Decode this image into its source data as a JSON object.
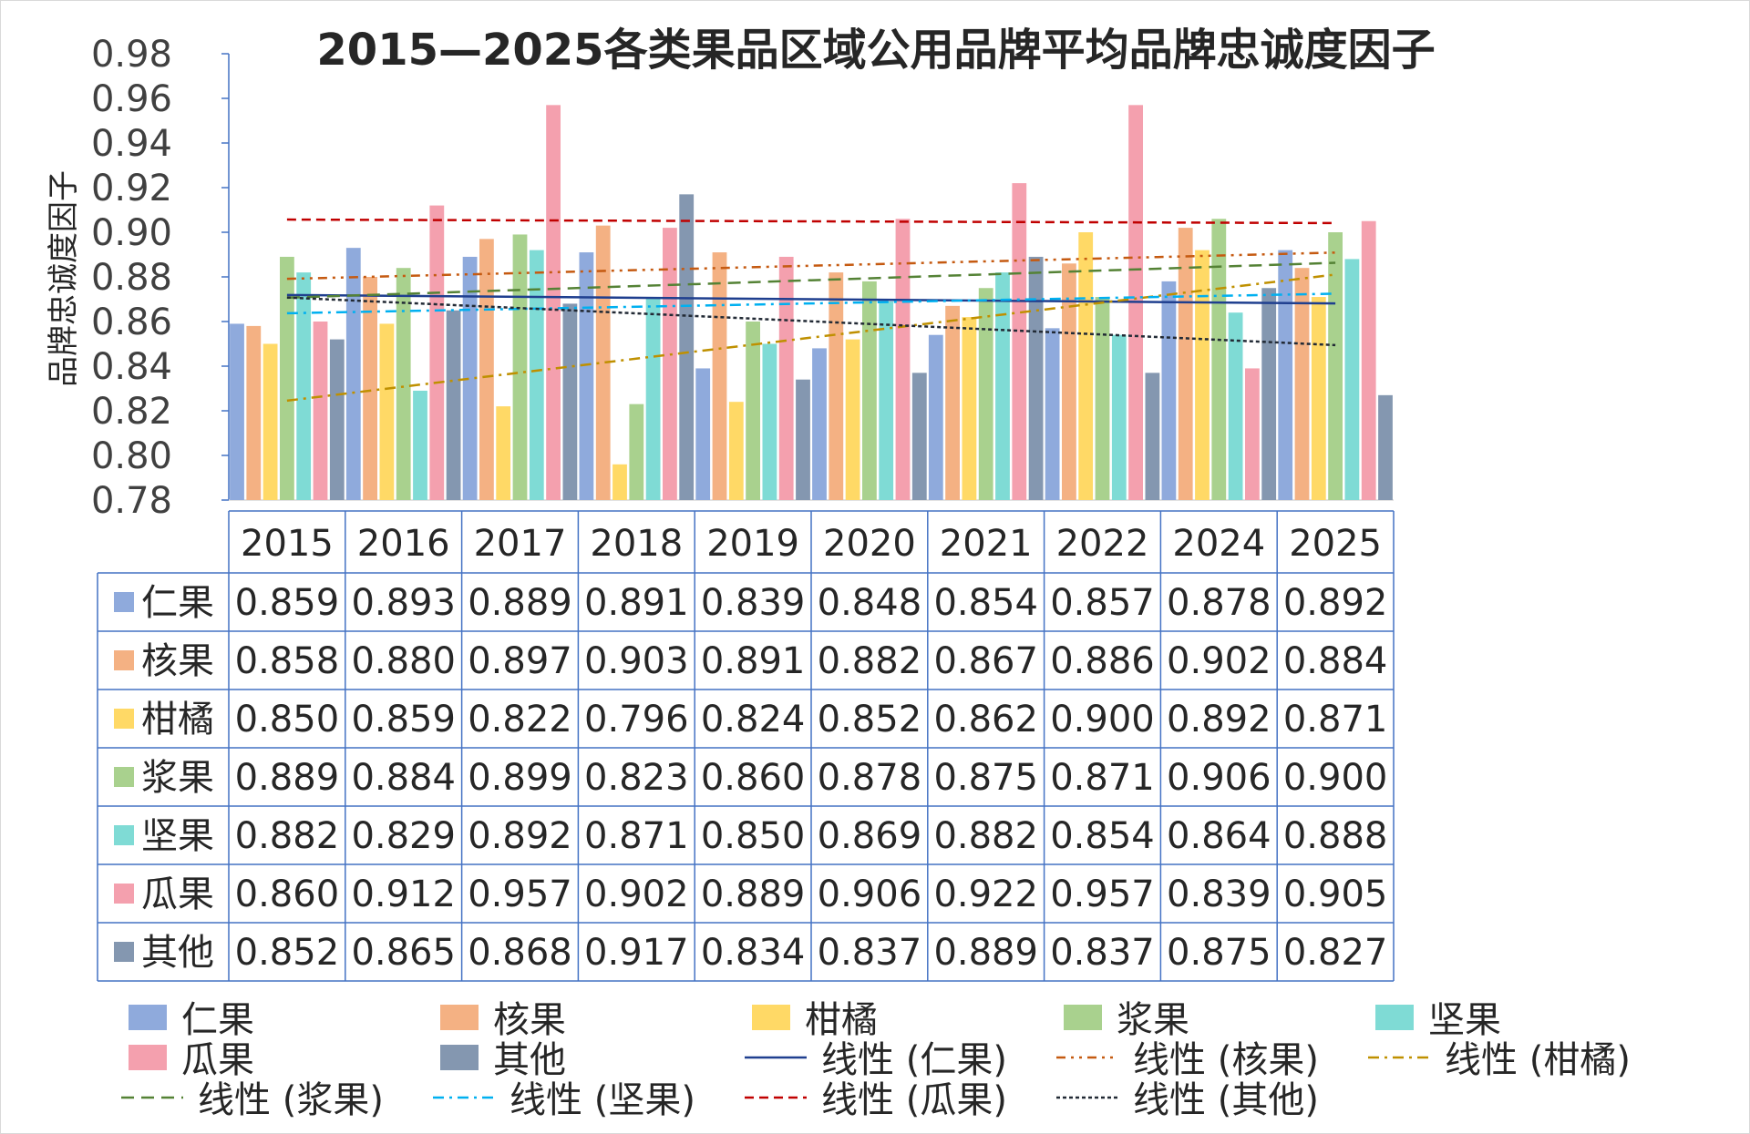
{
  "chart_data": {
    "type": "bar",
    "title": "2015—2025各类果品区域公用品牌平均品牌忠诚度因子",
    "ylabel": "品牌忠诚度因子",
    "xlabel": "",
    "ylim": [
      0.78,
      0.98
    ],
    "ytick_step": 0.02,
    "yticks": [
      "0.78",
      "0.80",
      "0.82",
      "0.84",
      "0.86",
      "0.88",
      "0.90",
      "0.92",
      "0.94",
      "0.96",
      "0.98"
    ],
    "categories": [
      "2015",
      "2016",
      "2017",
      "2018",
      "2019",
      "2020",
      "2021",
      "2022",
      "2024",
      "2025"
    ],
    "series": [
      {
        "name": "仁果",
        "color": "#8faadc",
        "values": [
          0.859,
          0.893,
          0.889,
          0.891,
          0.839,
          0.848,
          0.854,
          0.857,
          0.878,
          0.892
        ],
        "labels": [
          "0.859",
          "0.893",
          "0.889",
          "0.891",
          "0.839",
          "0.848",
          "0.854",
          "0.857",
          "0.878",
          "0.892"
        ]
      },
      {
        "name": "核果",
        "color": "#f4b183",
        "values": [
          0.858,
          0.88,
          0.897,
          0.903,
          0.891,
          0.882,
          0.867,
          0.886,
          0.902,
          0.884
        ],
        "labels": [
          "0.858",
          "0.880",
          "0.897",
          "0.903",
          "0.891",
          "0.882",
          "0.867",
          "0.886",
          "0.902",
          "0.884"
        ]
      },
      {
        "name": "柑橘",
        "color": "#ffd966",
        "values": [
          0.85,
          0.859,
          0.822,
          0.796,
          0.824,
          0.852,
          0.862,
          0.9,
          0.892,
          0.871
        ],
        "labels": [
          "0.850",
          "0.859",
          "0.822",
          "0.796",
          "0.824",
          "0.852",
          "0.862",
          "0.900",
          "0.892",
          "0.871"
        ]
      },
      {
        "name": "浆果",
        "color": "#a9d18e",
        "values": [
          0.889,
          0.884,
          0.899,
          0.823,
          0.86,
          0.878,
          0.875,
          0.871,
          0.906,
          0.9
        ],
        "labels": [
          "0.889",
          "0.884",
          "0.899",
          "0.823",
          "0.860",
          "0.878",
          "0.875",
          "0.871",
          "0.906",
          "0.900"
        ]
      },
      {
        "name": "坚果",
        "color": "#7fdbd5",
        "values": [
          0.882,
          0.829,
          0.892,
          0.871,
          0.85,
          0.869,
          0.882,
          0.854,
          0.864,
          0.888
        ],
        "labels": [
          "0.882",
          "0.829",
          "0.892",
          "0.871",
          "0.850",
          "0.869",
          "0.882",
          "0.854",
          "0.864",
          "0.888"
        ]
      },
      {
        "name": "瓜果",
        "color": "#f4a0ae",
        "values": [
          0.86,
          0.912,
          0.957,
          0.902,
          0.889,
          0.906,
          0.922,
          0.957,
          0.839,
          0.905
        ],
        "labels": [
          "0.860",
          "0.912",
          "0.957",
          "0.902",
          "0.889",
          "0.906",
          "0.922",
          "0.957",
          "0.839",
          "0.905"
        ]
      },
      {
        "name": "其他",
        "color": "#8497b0",
        "values": [
          0.852,
          0.865,
          0.868,
          0.917,
          0.834,
          0.837,
          0.889,
          0.837,
          0.875,
          0.827
        ],
        "labels": [
          "0.852",
          "0.865",
          "0.868",
          "0.917",
          "0.834",
          "0.837",
          "0.889",
          "0.837",
          "0.875",
          "0.827"
        ]
      }
    ],
    "trendlines": [
      {
        "name": "线性 (仁果)",
        "series": 0,
        "color": "#1f3f8f",
        "dash": ""
      },
      {
        "name": "线性 (核果)",
        "series": 1,
        "color": "#c55a11",
        "dash": "10 6 3 6 3 6"
      },
      {
        "name": "线性 (柑橘)",
        "series": 2,
        "color": "#bf9000",
        "dash": "12 6 3 6"
      },
      {
        "name": "线性 (浆果)",
        "series": 3,
        "color": "#548235",
        "dash": "14 8"
      },
      {
        "name": "线性 (坚果)",
        "series": 4,
        "color": "#00b0f0",
        "dash": "12 6 3 6"
      },
      {
        "name": "线性 (瓜果)",
        "series": 5,
        "color": "#c00000",
        "dash": "10 6"
      },
      {
        "name": "线性 (其他)",
        "series": 6,
        "color": "#222a35",
        "dash": "4 3"
      }
    ],
    "legend_position": "bottom",
    "data_table": true,
    "grid": false
  }
}
